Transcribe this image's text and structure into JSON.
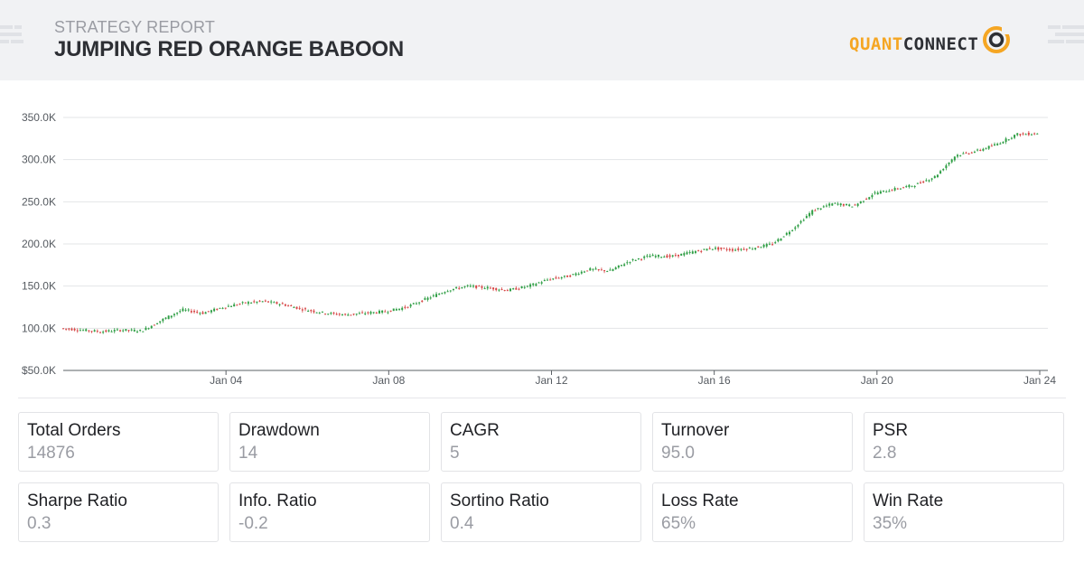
{
  "header": {
    "subtitle": "STRATEGY REPORT",
    "title": "JUMPING RED ORANGE BABOON",
    "logo_part1": "QUANT",
    "logo_part2": "CONNECT",
    "logo_colors": {
      "accent": "#f5a623",
      "dark": "#2d2f34"
    }
  },
  "chart_data": {
    "type": "candlestick",
    "title": "",
    "xlabel": "",
    "ylabel": "",
    "y_ticks": [
      "$50.0K",
      "100.0K",
      "150.0K",
      "200.0K",
      "250.0K",
      "300.0K",
      "350.0K"
    ],
    "y_tick_values": [
      50000,
      100000,
      150000,
      200000,
      250000,
      300000,
      350000
    ],
    "ylim": [
      50000,
      350000
    ],
    "x_ticks": [
      "Jan 04",
      "Jan 08",
      "Jan 12",
      "Jan 16",
      "Jan 20",
      "Jan 24"
    ],
    "x_tick_days": [
      4,
      8,
      12,
      16,
      20,
      24
    ],
    "xlim_days": [
      0,
      24.2
    ],
    "grid": true,
    "colors": {
      "up": "#2e9e44",
      "down": "#d64545"
    },
    "series": [
      {
        "x": [
          0,
          0.5,
          1,
          1.5,
          2,
          2.5,
          3,
          3.5,
          4,
          4.5,
          5,
          5.5,
          6,
          6.5,
          7,
          7.5,
          8,
          8.5,
          9,
          9.5,
          10,
          10.5,
          11,
          11.5,
          12,
          12.5,
          13,
          13.5,
          14,
          14.5,
          15,
          15.5,
          16,
          16.5,
          17,
          17.5,
          18,
          18.5,
          19,
          19.5,
          20,
          20.5,
          21,
          21.5,
          22,
          22.5,
          23,
          23.5,
          24
        ],
        "values": [
          100000,
          98000,
          96000,
          98000,
          97000,
          110000,
          122000,
          118000,
          125000,
          130000,
          132000,
          128000,
          122000,
          118000,
          116000,
          118000,
          120000,
          125000,
          135000,
          145000,
          150000,
          148000,
          145000,
          150000,
          158000,
          162000,
          170000,
          168000,
          180000,
          186000,
          185000,
          190000,
          195000,
          193000,
          195000,
          200000,
          218000,
          240000,
          248000,
          245000,
          260000,
          265000,
          270000,
          280000,
          305000,
          310000,
          318000,
          330000,
          331000
        ]
      }
    ]
  },
  "metrics": [
    {
      "label": "Total Orders",
      "value": "14876"
    },
    {
      "label": "Drawdown",
      "value": "14"
    },
    {
      "label": "CAGR",
      "value": "5"
    },
    {
      "label": "Turnover",
      "value": "95.0"
    },
    {
      "label": "PSR",
      "value": "2.8"
    },
    {
      "label": "Sharpe Ratio",
      "value": "0.3"
    },
    {
      "label": "Info. Ratio",
      "value": "-0.2"
    },
    {
      "label": "Sortino Ratio",
      "value": "0.4"
    },
    {
      "label": "Loss Rate",
      "value": "65%"
    },
    {
      "label": "Win Rate",
      "value": "35%"
    }
  ]
}
